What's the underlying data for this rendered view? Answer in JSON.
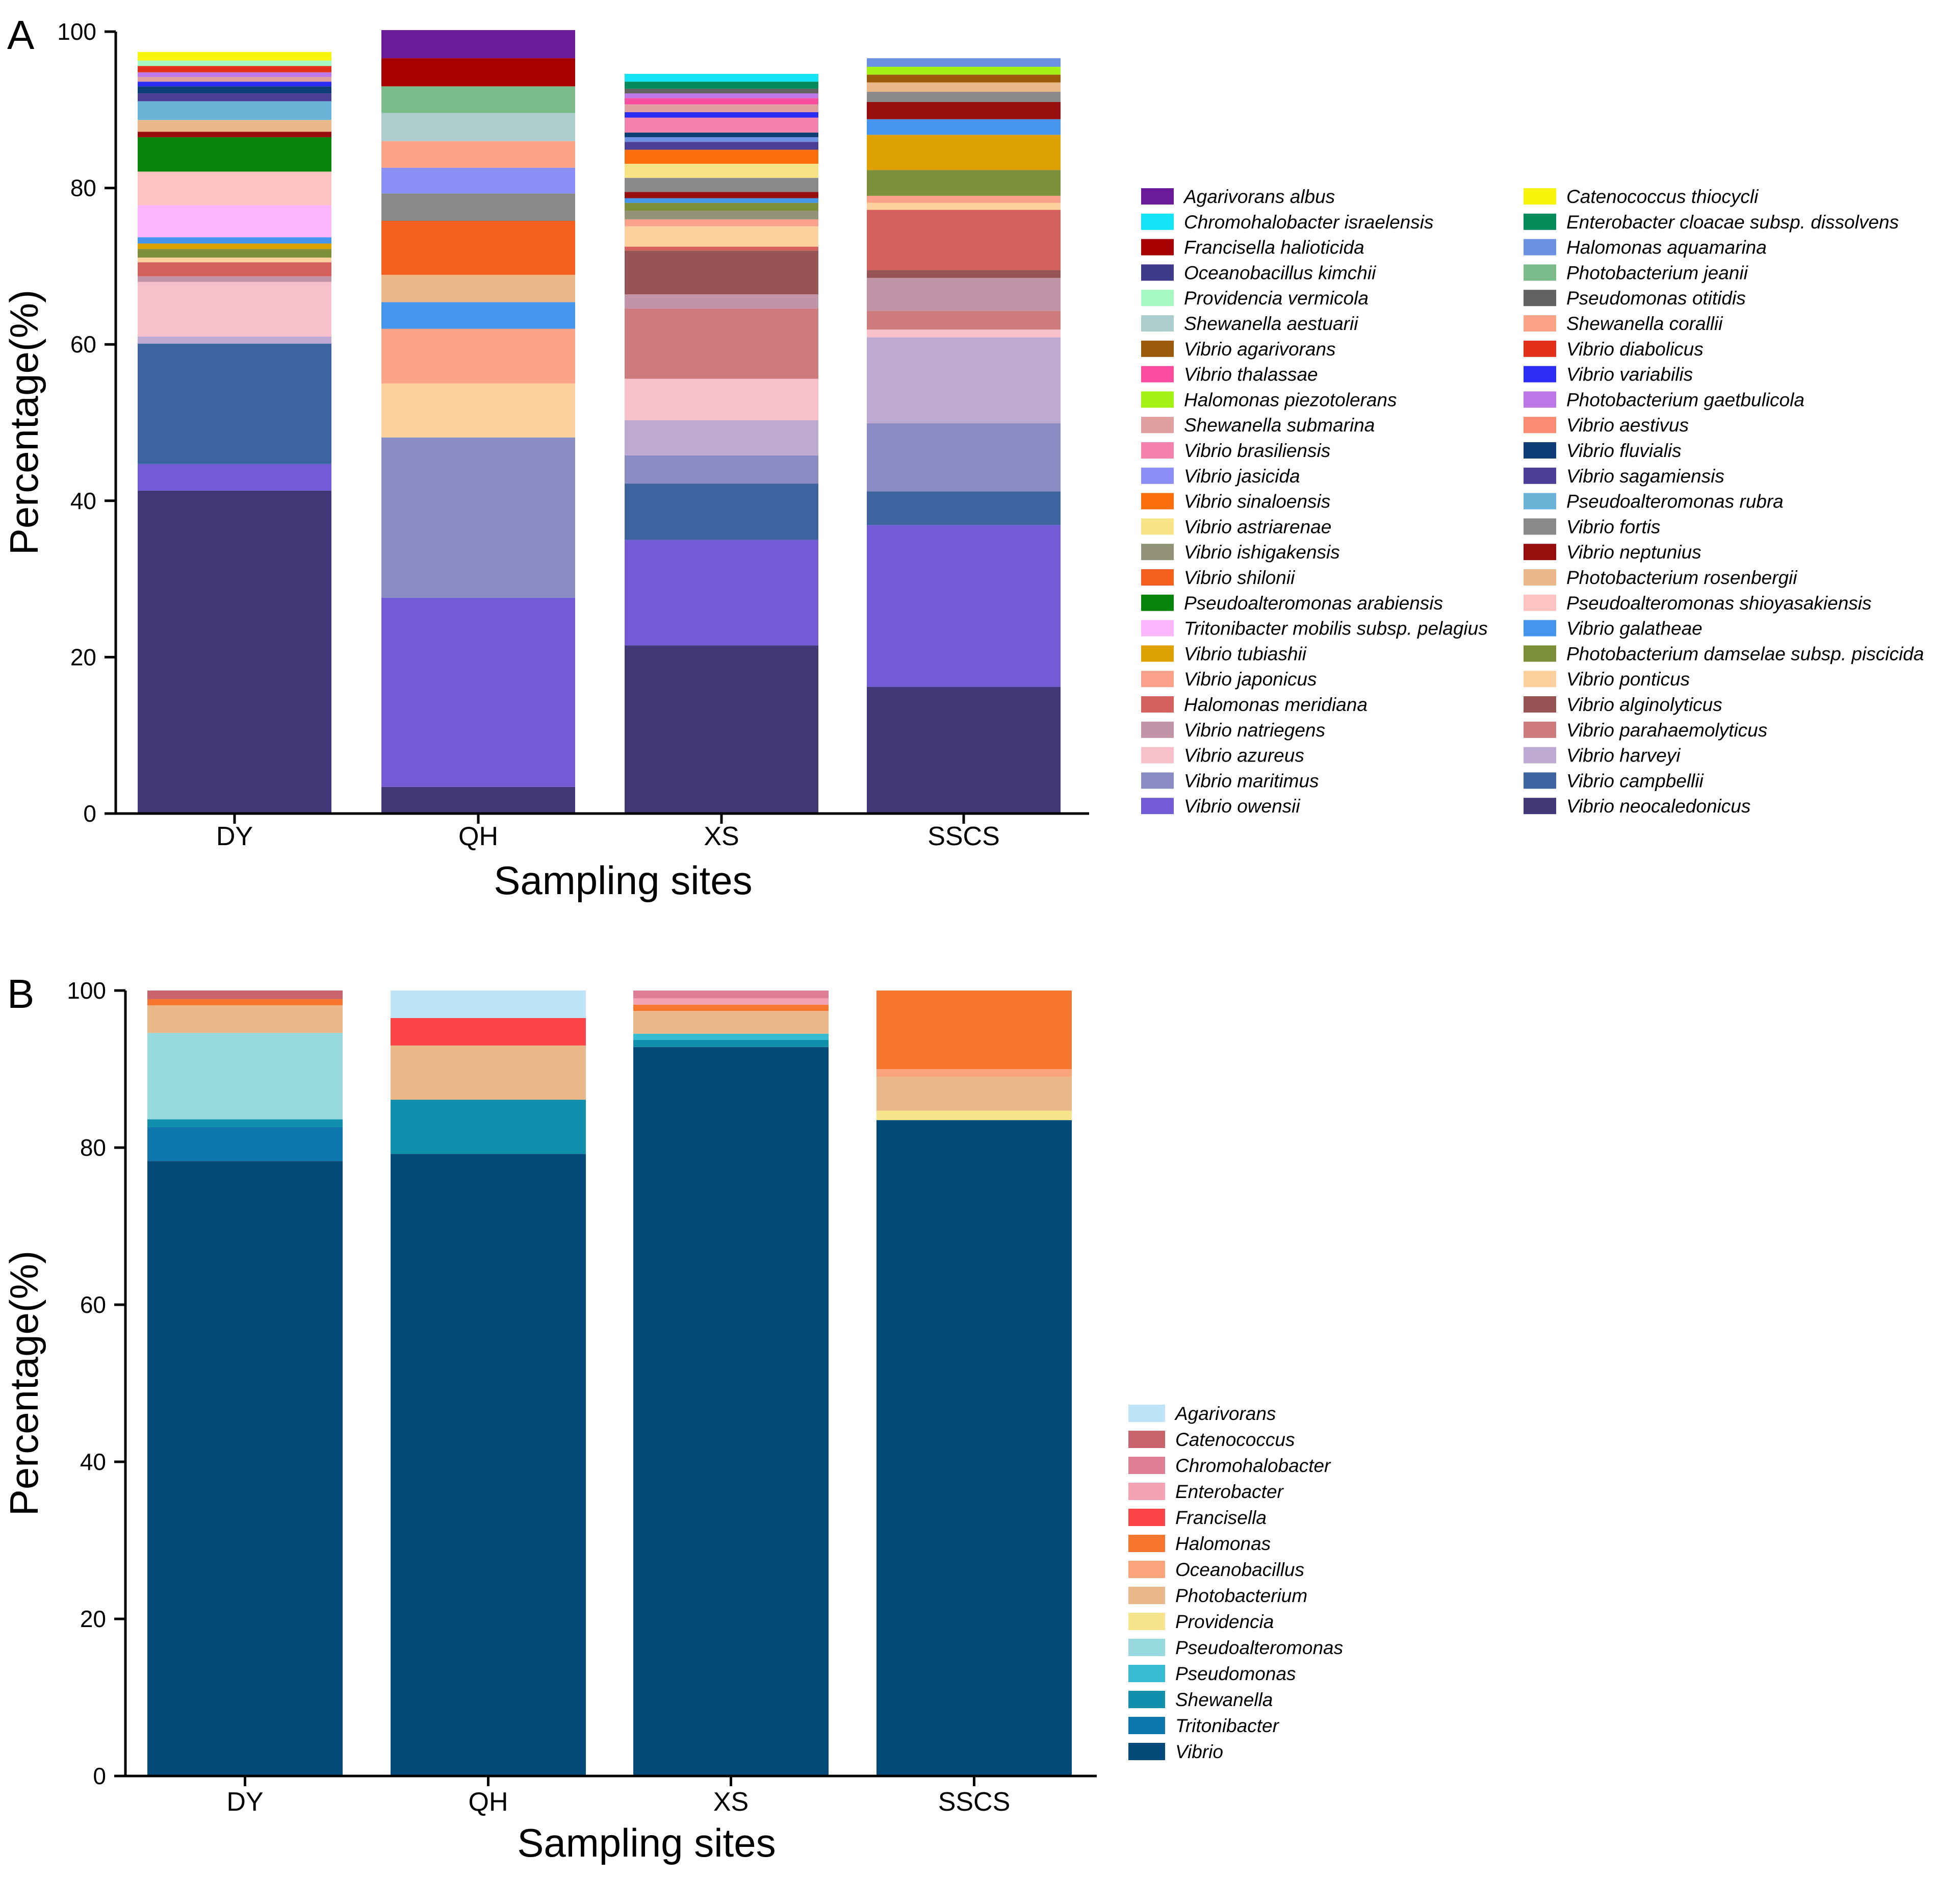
{
  "chart_data": [
    {
      "panel_label": "A",
      "type": "bar",
      "stacked": true,
      "title": "",
      "xlabel": "Sampling sites",
      "ylabel": "Percentage(%)",
      "ylim": [
        0,
        100
      ],
      "yticks": [
        "0",
        "20",
        "40",
        "60",
        "80",
        "100"
      ],
      "categories": [
        "DY",
        "QH",
        "XS",
        "SSCS"
      ],
      "legend_position": "right",
      "series": [
        {
          "name": "Vibrio neocaledonicus",
          "color": "#423877",
          "values": [
            41.3,
            3.4,
            21.5,
            16.2
          ]
        },
        {
          "name": "Vibrio owensii",
          "color": "#725bd4",
          "values": [
            3.4,
            24.2,
            13.5,
            20.7
          ]
        },
        {
          "name": "Vibrio campbellii",
          "color": "#3e64a0",
          "values": [
            15.4,
            0,
            7.2,
            4.3
          ]
        },
        {
          "name": "Vibrio maritimus",
          "color": "#8a8cc4",
          "values": [
            0,
            20.5,
            3.6,
            8.7
          ]
        },
        {
          "name": "Vibrio harveyi",
          "color": "#bda9d2",
          "values": [
            0.9,
            0,
            4.5,
            11.0
          ]
        },
        {
          "name": "Vibrio azureus",
          "color": "#f7c0cb",
          "values": [
            7.0,
            0,
            5.3,
            1.0
          ]
        },
        {
          "name": "Vibrio ponticus",
          "color": "#fdd09d",
          "values": [
            0,
            6.9,
            0,
            0
          ]
        },
        {
          "name": "Shewanella corallii",
          "color": "#fba386",
          "values": [
            0,
            7.0,
            0,
            0
          ]
        },
        {
          "name": "Vibrio parahaemolyticus",
          "color": "#cd7b7c",
          "values": [
            0,
            0,
            9.0,
            2.4
          ]
        },
        {
          "name": "Vibrio natriegens",
          "color": "#c194a8",
          "values": [
            0.7,
            0,
            1.8,
            4.2
          ]
        },
        {
          "name": "Vibrio alginolyticus",
          "color": "#975455",
          "values": [
            0,
            0,
            5.6,
            1.0
          ]
        },
        {
          "name": "Vibrio galatheae",
          "color": "#4695ec",
          "values": [
            0,
            3.4,
            0,
            0
          ]
        },
        {
          "name": "Photobacterium rosenbergii",
          "color": "#ebb88a",
          "values": [
            0,
            3.5,
            0,
            0
          ]
        },
        {
          "name": "Halomonas meridiana",
          "color": "#d5615f",
          "values": [
            1.8,
            0,
            0.5,
            7.7
          ]
        },
        {
          "name": "Vibrio shilonii",
          "color": "#f55f1e",
          "values": [
            0,
            6.9,
            0,
            0
          ]
        },
        {
          "name": "Vibrio ponticus",
          "color": "#fdd09d",
          "values": [
            0.6,
            0,
            2.6,
            0.9
          ]
        },
        {
          "name": "Vibrio japonicus",
          "color": "#f9a189",
          "values": [
            0,
            0,
            0.9,
            0.9
          ]
        },
        {
          "name": "Vibrio fortis",
          "color": "#8a8a8a",
          "values": [
            0,
            3.5,
            0,
            0
          ]
        },
        {
          "name": "Vibrio ishigakensis",
          "color": "#939378",
          "values": [
            0,
            0,
            1.1,
            0
          ]
        },
        {
          "name": "Photobacterium damselae subsp. piscicida",
          "color": "#7e8f39",
          "values": [
            1.1,
            0,
            1.0,
            3.3
          ]
        },
        {
          "name": "Vibrio jasicida",
          "color": "#8c8ff7",
          "values": [
            0,
            3.3,
            0,
            0
          ]
        },
        {
          "name": "Vibrio tubiashii",
          "color": "#dda104",
          "values": [
            0.7,
            0,
            0,
            4.5
          ]
        },
        {
          "name": "Vibrio galatheae",
          "color": "#4695ec",
          "values": [
            0.8,
            0,
            0.6,
            2.0
          ]
        },
        {
          "name": "Tritonibacter mobilis subsp. pelagius",
          "color": "#fab6fb",
          "values": [
            4.1,
            0,
            0,
            0
          ]
        },
        {
          "name": "Shewanella corallii",
          "color": "#fba386",
          "values": [
            0,
            3.4,
            0,
            0
          ]
        },
        {
          "name": "Pseudoalteromonas shioyasakiensis",
          "color": "#fdc3c1",
          "values": [
            4.3,
            0,
            0,
            0
          ]
        },
        {
          "name": "Shewanella aestuarii",
          "color": "#abcdcd",
          "values": [
            0,
            3.6,
            0,
            0
          ]
        },
        {
          "name": "Pseudoalteromonas arabiensis",
          "color": "#088309",
          "values": [
            4.4,
            0,
            0,
            0
          ]
        },
        {
          "name": "Vibrio neptunius",
          "color": "#980d0d",
          "values": [
            0.7,
            0,
            0.8,
            2.2
          ]
        },
        {
          "name": "Photobacterium jeanii",
          "color": "#7cbc8b",
          "values": [
            0,
            3.4,
            0,
            0
          ]
        },
        {
          "name": "Vibrio fortis",
          "color": "#8a8a8a",
          "values": [
            0,
            0,
            1.8,
            1.3
          ]
        },
        {
          "name": "Photobacterium rosenbergii",
          "color": "#ebb88a",
          "values": [
            1.5,
            0,
            0,
            1.2
          ]
        },
        {
          "name": "Vibrio astriarenae",
          "color": "#f8e385",
          "values": [
            0,
            0,
            1.8,
            0
          ]
        },
        {
          "name": "Francisella halioticida",
          "color": "#a70000",
          "values": [
            0,
            3.6,
            0,
            0
          ]
        },
        {
          "name": "Vibrio sinaloensis",
          "color": "#fa6f0c",
          "values": [
            0,
            0,
            1.8,
            0
          ]
        },
        {
          "name": "Pseudoalteromonas rubra",
          "color": "#69b4d6",
          "values": [
            2.4,
            0,
            0,
            0
          ]
        },
        {
          "name": "Vibrio agarivorans",
          "color": "#9c5a0b",
          "values": [
            0,
            0,
            0,
            1.0
          ]
        },
        {
          "name": "Halomonas piezotolerans",
          "color": "#a4f213",
          "values": [
            0,
            0,
            0,
            1.0
          ]
        },
        {
          "name": "Vibrio sagamiensis",
          "color": "#4b3e96",
          "values": [
            1.0,
            0,
            1.0,
            0
          ]
        },
        {
          "name": "Halomonas aquamarina",
          "color": "#6d91e2",
          "values": [
            0,
            0,
            0.6,
            1.1
          ]
        },
        {
          "name": "Vibrio fluvialis",
          "color": "#0f3e76",
          "values": [
            0.9,
            0,
            0.6,
            0
          ]
        },
        {
          "name": "Vibrio brasiliensis",
          "color": "#f681ad",
          "values": [
            0,
            0,
            1.9,
            0
          ]
        },
        {
          "name": "Agarivorans albus",
          "color": "#6a1b9a",
          "values": [
            0,
            3.6,
            0,
            0
          ]
        },
        {
          "name": "Vibrio variabilis",
          "color": "#2b2df5",
          "values": [
            0.6,
            0,
            0.7,
            0
          ]
        },
        {
          "name": "Shewanella submarina",
          "color": "#e0a09f",
          "values": [
            0.6,
            0,
            1.0,
            0
          ]
        },
        {
          "name": "Vibrio thalassae",
          "color": "#fb4c9f",
          "values": [
            0,
            0,
            0.8,
            0
          ]
        },
        {
          "name": "Photobacterium gaetbulicola",
          "color": "#bb78e6",
          "values": [
            0.6,
            0,
            0.6,
            0
          ]
        },
        {
          "name": "Vibrio diabolicus",
          "color": "#e3301a",
          "values": [
            0.8,
            0,
            0,
            0
          ]
        },
        {
          "name": "Pseudomonas otitidis",
          "color": "#626262",
          "values": [
            0,
            0,
            0.6,
            0
          ]
        },
        {
          "name": "Providencia vermicola",
          "color": "#a4f8c0",
          "values": [
            0.7,
            0,
            0,
            0
          ]
        },
        {
          "name": "Enterobacter cloacae subsp. dissolvens",
          "color": "#058a59",
          "values": [
            0,
            0,
            0.9,
            0
          ]
        },
        {
          "name": "Catenococcus thiocycli",
          "color": "#f9f50a",
          "values": [
            1.1,
            0,
            0,
            0
          ]
        },
        {
          "name": "Chromohalobacter israelensis",
          "color": "#12e4f5",
          "values": [
            0,
            0,
            1.0,
            0
          ]
        }
      ],
      "legend": [
        {
          "name": "Agarivorans albus",
          "color": "#6a1b9a"
        },
        {
          "name": "Chromohalobacter israelensis",
          "color": "#12e4f5"
        },
        {
          "name": "Francisella halioticida",
          "color": "#a70000"
        },
        {
          "name": "Oceanobacillus kimchii",
          "color": "#3e3a8a"
        },
        {
          "name": "Providencia vermicola",
          "color": "#a4f8c0"
        },
        {
          "name": "Shewanella aestuarii",
          "color": "#abcdcd"
        },
        {
          "name": "Vibrio agarivorans",
          "color": "#9c5a0b"
        },
        {
          "name": "Vibrio thalassae",
          "color": "#fb4c9f"
        },
        {
          "name": "Halomonas piezotolerans",
          "color": "#a4f213"
        },
        {
          "name": "Shewanella submarina",
          "color": "#e0a09f"
        },
        {
          "name": "Vibrio brasiliensis",
          "color": "#f681ad"
        },
        {
          "name": "Vibrio jasicida",
          "color": "#8c8ff7"
        },
        {
          "name": "Vibrio sinaloensis",
          "color": "#fa6f0c"
        },
        {
          "name": "Vibrio astriarenae",
          "color": "#f8e385"
        },
        {
          "name": "Vibrio ishigakensis",
          "color": "#939378"
        },
        {
          "name": "Vibrio shilonii",
          "color": "#f55f1e"
        },
        {
          "name": "Pseudoalteromonas arabiensis",
          "color": "#088309"
        },
        {
          "name": "Tritonibacter mobilis subsp. pelagius",
          "color": "#fab6fb"
        },
        {
          "name": "Vibrio tubiashii",
          "color": "#dda104"
        },
        {
          "name": "Vibrio japonicus",
          "color": "#f9a189"
        },
        {
          "name": "Halomonas meridiana",
          "color": "#d5615f"
        },
        {
          "name": "Vibrio natriegens",
          "color": "#c194a8"
        },
        {
          "name": "Vibrio azureus",
          "color": "#f7c0cb"
        },
        {
          "name": "Vibrio maritimus",
          "color": "#8a8cc4"
        },
        {
          "name": "Vibrio owensii",
          "color": "#725bd4"
        },
        {
          "name": "Catenococcus thiocycli",
          "color": "#f9f50a"
        },
        {
          "name": "Enterobacter cloacae subsp. dissolvens",
          "color": "#058a59"
        },
        {
          "name": "Halomonas aquamarina",
          "color": "#6d91e2"
        },
        {
          "name": "Photobacterium jeanii",
          "color": "#7cbc8b"
        },
        {
          "name": "Pseudomonas otitidis",
          "color": "#626262"
        },
        {
          "name": "Shewanella corallii",
          "color": "#fba386"
        },
        {
          "name": "Vibrio diabolicus",
          "color": "#e3301a"
        },
        {
          "name": "Vibrio variabilis",
          "color": "#2b2df5"
        },
        {
          "name": "Photobacterium gaetbulicola",
          "color": "#bb78e6"
        },
        {
          "name": "Vibrio aestivus",
          "color": "#fb8b73"
        },
        {
          "name": "Vibrio fluvialis",
          "color": "#0f3e76"
        },
        {
          "name": "Vibrio sagamiensis",
          "color": "#4b3e96"
        },
        {
          "name": "Pseudoalteromonas rubra",
          "color": "#69b4d6"
        },
        {
          "name": "Vibrio fortis",
          "color": "#8a8a8a"
        },
        {
          "name": "Vibrio neptunius",
          "color": "#980d0d"
        },
        {
          "name": "Photobacterium rosenbergii",
          "color": "#ebb88a"
        },
        {
          "name": "Pseudoalteromonas shioyasakiensis",
          "color": "#fdc3c1"
        },
        {
          "name": "Vibrio galatheae",
          "color": "#4695ec"
        },
        {
          "name": "Photobacterium damselae subsp. piscicida",
          "color": "#7e8f39"
        },
        {
          "name": "Vibrio ponticus",
          "color": "#fdd09d"
        },
        {
          "name": "Vibrio alginolyticus",
          "color": "#975455"
        },
        {
          "name": "Vibrio parahaemolyticus",
          "color": "#cd7b7c"
        },
        {
          "name": "Vibrio harveyi",
          "color": "#bda9d2"
        },
        {
          "name": "Vibrio campbellii",
          "color": "#3e64a0"
        },
        {
          "name": "Vibrio neocaledonicus",
          "color": "#423877"
        }
      ]
    },
    {
      "panel_label": "B",
      "type": "bar",
      "stacked": true,
      "title": "",
      "xlabel": "Sampling sites",
      "ylabel": "Percentage(%)",
      "ylim": [
        0,
        100
      ],
      "yticks": [
        "0",
        "20",
        "40",
        "60",
        "80",
        "100"
      ],
      "categories": [
        "DY",
        "QH",
        "XS",
        "SSCS"
      ],
      "legend_position": "right",
      "series": [
        {
          "name": "Vibrio",
          "color": "#044b7a",
          "values": [
            78.3,
            79.2,
            92.8,
            83.5
          ]
        },
        {
          "name": "Tritonibacter",
          "color": "#0e78ae",
          "values": [
            4.3,
            0,
            0,
            0
          ]
        },
        {
          "name": "Shewanella",
          "color": "#118fac",
          "values": [
            1.0,
            6.9,
            0.9,
            0
          ]
        },
        {
          "name": "Pseudomonas",
          "color": "#35bcd2",
          "values": [
            0,
            0,
            0.8,
            0
          ]
        },
        {
          "name": "Pseudoalteromonas",
          "color": "#97d9de",
          "values": [
            11.0,
            0,
            0,
            0
          ]
        },
        {
          "name": "Providencia",
          "color": "#f6e58c",
          "values": [
            0,
            0,
            0,
            1.2
          ]
        },
        {
          "name": "Photobacterium",
          "color": "#ebb88a",
          "values": [
            3.5,
            6.9,
            2.9,
            4.3
          ]
        },
        {
          "name": "Oceanobacillus",
          "color": "#f9a47a",
          "values": [
            0,
            0,
            0,
            1.0
          ]
        },
        {
          "name": "Halomonas",
          "color": "#f7772e",
          "values": [
            0.8,
            0,
            0.8,
            10.0
          ]
        },
        {
          "name": "Francisella",
          "color": "#fc4346",
          "values": [
            0,
            3.5,
            0,
            0
          ]
        },
        {
          "name": "Enterobacter",
          "color": "#f5a3b3",
          "values": [
            0,
            0,
            0.8,
            0
          ]
        },
        {
          "name": "Chromohalobacter",
          "color": "#e07e95",
          "values": [
            0,
            0,
            1.0,
            0
          ]
        },
        {
          "name": "Catenococcus",
          "color": "#c9636d",
          "values": [
            1.1,
            0,
            0,
            0
          ]
        },
        {
          "name": "Agarivorans",
          "color": "#bfe4fa",
          "values": [
            0,
            3.5,
            0,
            0
          ]
        }
      ],
      "legend": [
        {
          "name": "Agarivorans",
          "color": "#bfe4fa"
        },
        {
          "name": "Catenococcus",
          "color": "#c9636d"
        },
        {
          "name": "Chromohalobacter",
          "color": "#e07e95"
        },
        {
          "name": "Enterobacter",
          "color": "#f5a3b3"
        },
        {
          "name": "Francisella",
          "color": "#fc4346"
        },
        {
          "name": "Halomonas",
          "color": "#f7772e"
        },
        {
          "name": "Oceanobacillus",
          "color": "#f9a47a"
        },
        {
          "name": "Photobacterium",
          "color": "#ebb88a"
        },
        {
          "name": "Providencia",
          "color": "#f6e58c"
        },
        {
          "name": "Pseudoalteromonas",
          "color": "#97d9de"
        },
        {
          "name": "Pseudomonas",
          "color": "#35bcd2"
        },
        {
          "name": "Shewanella",
          "color": "#118fac"
        },
        {
          "name": "Tritonibacter",
          "color": "#0e78ae"
        },
        {
          "name": "Vibrio",
          "color": "#044b7a"
        }
      ]
    }
  ]
}
